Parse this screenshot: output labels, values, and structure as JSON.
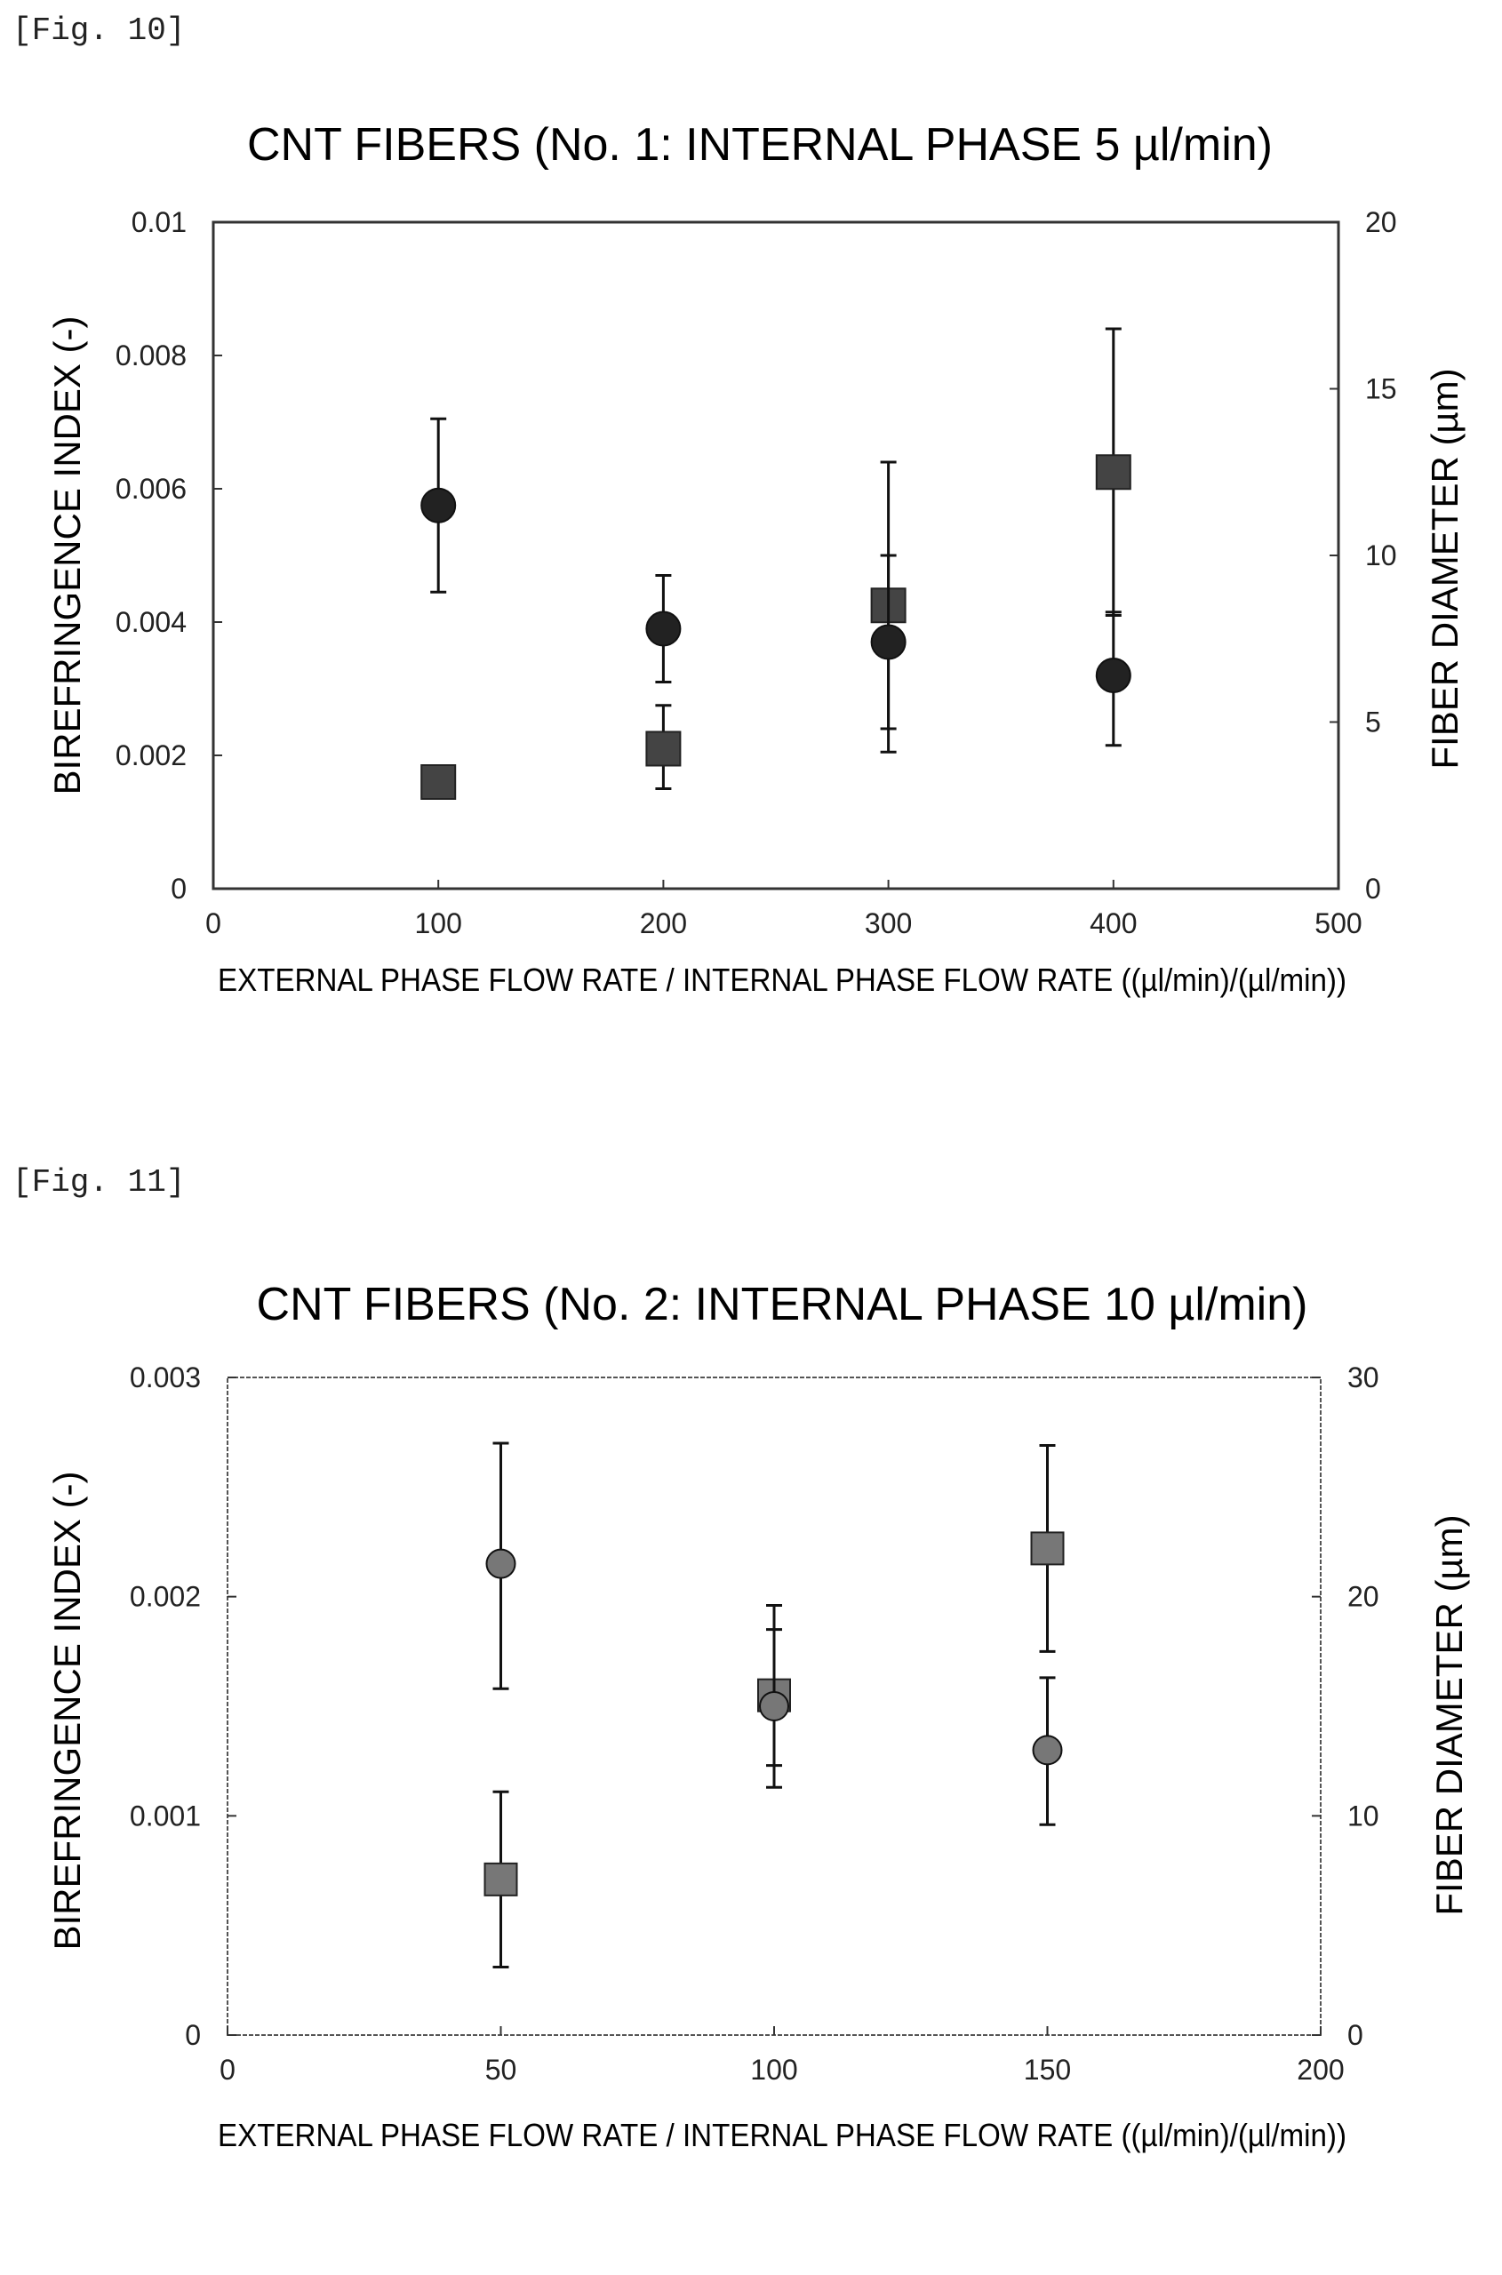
{
  "figures": [
    {
      "label": "[Fig. 10]"
    },
    {
      "label": "[Fig. 11]"
    }
  ],
  "chart_data": [
    {
      "type": "scatter",
      "title": "CNT FIBERS (No. 1: INTERNAL PHASE 5 µl/min)",
      "xlabel": "EXTERNAL PHASE FLOW RATE / INTERNAL PHASE FLOW RATE ((µl/min)/(µl/min))",
      "ylabel": "BIREFRINGENCE INDEX (-)",
      "y2label": "FIBER DIAMETER (µm)",
      "xlim": [
        0,
        500
      ],
      "ylim": [
        0,
        0.01
      ],
      "y2lim": [
        0,
        20
      ],
      "xticks": [
        "0",
        "100",
        "200",
        "300",
        "400",
        "500"
      ],
      "yticks": [
        "0",
        "0.002",
        "0.004",
        "0.006",
        "0.008",
        "0.01"
      ],
      "y2ticks": [
        "0",
        "5",
        "10",
        "15",
        "20"
      ],
      "series": [
        {
          "marker": "circle",
          "axis": "left",
          "color": "#222222",
          "points": [
            {
              "x": 100,
              "y": 0.00575,
              "lo": 0.00445,
              "hi": 0.00705
            },
            {
              "x": 200,
              "y": 0.0039,
              "lo": 0.0031,
              "hi": 0.0047
            },
            {
              "x": 300,
              "y": 0.0037,
              "lo": 0.0024,
              "hi": 0.005
            },
            {
              "x": 400,
              "y": 0.0032,
              "lo": 0.00215,
              "hi": 0.00415
            }
          ]
        },
        {
          "marker": "square",
          "axis": "right",
          "color": "#444444",
          "points": [
            {
              "x": 100,
              "y": 3.2,
              "lo": 3.0,
              "hi": 3.5
            },
            {
              "x": 200,
              "y": 4.2,
              "lo": 3.0,
              "hi": 5.5
            },
            {
              "x": 300,
              "y": 8.5,
              "lo": 4.1,
              "hi": 12.8
            },
            {
              "x": 400,
              "y": 12.5,
              "lo": 8.2,
              "hi": 16.8
            }
          ]
        }
      ]
    },
    {
      "type": "scatter",
      "title": "CNT FIBERS (No. 2: INTERNAL PHASE 10 µl/min)",
      "xlabel": "EXTERNAL PHASE FLOW RATE / INTERNAL PHASE FLOW RATE ((µl/min)/(µl/min))",
      "ylabel": "BIREFRINGENCE INDEX (-)",
      "y2label": "FIBER DIAMETER (µm)",
      "xlim": [
        0,
        200
      ],
      "ylim": [
        0,
        0.003
      ],
      "y2lim": [
        0,
        30
      ],
      "xticks": [
        "0",
        "50",
        "100",
        "150",
        "200"
      ],
      "yticks": [
        "0",
        "0.001",
        "0.002",
        "0.003"
      ],
      "y2ticks": [
        "0",
        "10",
        "20",
        "30"
      ],
      "series": [
        {
          "marker": "circle",
          "axis": "left",
          "color": "#777777",
          "points": [
            {
              "x": 50,
              "y": 0.00215,
              "lo": 0.00158,
              "hi": 0.0027
            },
            {
              "x": 100,
              "y": 0.0015,
              "lo": 0.00123,
              "hi": 0.00185
            },
            {
              "x": 150,
              "y": 0.0013,
              "lo": 0.00096,
              "hi": 0.00163
            }
          ]
        },
        {
          "marker": "square",
          "axis": "right",
          "color": "#777777",
          "points": [
            {
              "x": 50,
              "y": 7.1,
              "lo": 3.1,
              "hi": 11.1
            },
            {
              "x": 100,
              "y": 15.5,
              "lo": 11.3,
              "hi": 19.6
            },
            {
              "x": 150,
              "y": 22.2,
              "lo": 17.5,
              "hi": 26.9
            }
          ]
        }
      ]
    }
  ]
}
